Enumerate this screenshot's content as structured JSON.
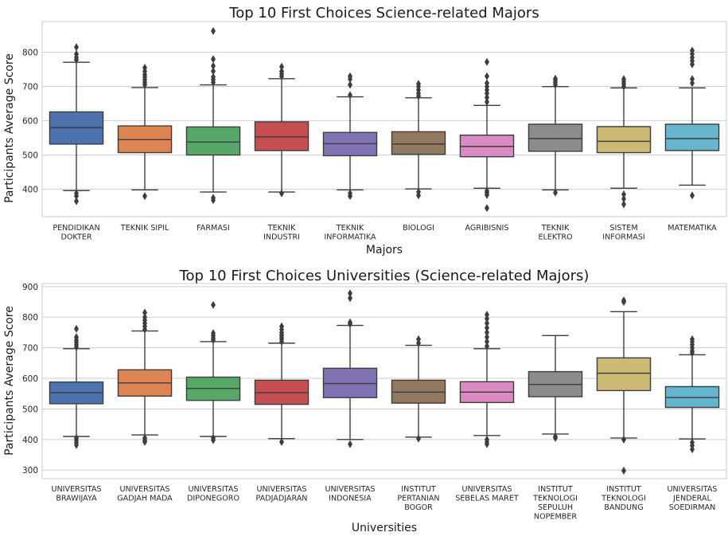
{
  "chart_data": [
    {
      "type": "box",
      "title": "Top 10 First Choices Science-related Majors",
      "xlabel": "Majors",
      "ylabel": "Participants Average Score",
      "ylim": [
        320,
        890
      ],
      "yticks": [
        400,
        500,
        600,
        700,
        800
      ],
      "grid": "horizontal",
      "categories": [
        "PENDIDIKAN\nDOKTER",
        "TEKNIK SIPIL",
        "FARMASI",
        "TEKNIK\nINDUSTRI",
        "TEKNIK\nINFORMATIKA",
        "BIOLOGI",
        "AGRIBISNIS",
        "TEKNIK\nELEKTRO",
        "SISTEM\nINFORMASI",
        "MATEMATIKA"
      ],
      "colors": [
        "#4c72b0",
        "#dd8452",
        "#55a868",
        "#c44e52",
        "#8172b3",
        "#937860",
        "#da8bc3",
        "#8c8c8c",
        "#ccb974",
        "#64b5cd"
      ],
      "boxes": [
        {
          "whislo": 396,
          "q1": 532,
          "med": 580,
          "q3": 626,
          "whishi": 771,
          "fliers": [
            365,
            380,
            388,
            778,
            785,
            795,
            815
          ]
        },
        {
          "whislo": 398,
          "q1": 507,
          "med": 545,
          "q3": 585,
          "whishi": 697,
          "fliers": [
            380,
            705,
            712,
            720,
            728,
            735,
            745,
            755
          ]
        },
        {
          "whislo": 392,
          "q1": 500,
          "med": 538,
          "q3": 582,
          "whishi": 705,
          "fliers": [
            368,
            375,
            712,
            720,
            728,
            745,
            760,
            780,
            862
          ]
        },
        {
          "whislo": 392,
          "q1": 513,
          "med": 553,
          "q3": 597,
          "whishi": 723,
          "fliers": [
            388,
            730,
            737,
            745,
            758
          ]
        },
        {
          "whislo": 398,
          "q1": 498,
          "med": 533,
          "q3": 566,
          "whishi": 670,
          "fliers": [
            380,
            388,
            675,
            705,
            722,
            730
          ]
        },
        {
          "whislo": 401,
          "q1": 502,
          "med": 532,
          "q3": 568,
          "whishi": 667,
          "fliers": [
            382,
            392,
            672,
            680,
            690,
            700,
            708
          ]
        },
        {
          "whislo": 403,
          "q1": 495,
          "med": 525,
          "q3": 558,
          "whishi": 645,
          "fliers": [
            345,
            383,
            390,
            395,
            655,
            668,
            680,
            690,
            700,
            710,
            730,
            772
          ]
        },
        {
          "whislo": 398,
          "q1": 511,
          "med": 548,
          "q3": 590,
          "whishi": 700,
          "fliers": [
            390,
            705,
            712,
            718,
            723
          ]
        },
        {
          "whislo": 403,
          "q1": 507,
          "med": 540,
          "q3": 583,
          "whishi": 696,
          "fliers": [
            356,
            372,
            385,
            700,
            708,
            715,
            722
          ]
        },
        {
          "whislo": 412,
          "q1": 513,
          "med": 548,
          "q3": 590,
          "whishi": 696,
          "fliers": [
            382,
            710,
            722,
            765,
            775,
            785,
            795,
            805
          ]
        }
      ]
    },
    {
      "type": "box",
      "title": "Top 10 First Choices Universities (Science-related Majors)",
      "xlabel": "Universities",
      "ylabel": "Participants Average Score",
      "ylim": [
        272,
        910
      ],
      "yticks": [
        300,
        400,
        500,
        600,
        700,
        800,
        900
      ],
      "grid": "horizontal",
      "categories": [
        "UNIVERSITAS\nBRAWIJAYA",
        "UNIVERSITAS\nGADJAH MADA",
        "UNIVERSITAS\nDIPONEGORO",
        "UNIVERSITAS\nPADJADJARAN",
        "UNIVERSITAS\nINDONESIA",
        "INSTITUT\nPERTANIAN\nBOGOR",
        "UNIVERSITAS\nSEBELAS MARET",
        "INSTITUT\nTEKNOLOGI\nSEPULUH\nNOPEMBER",
        "INSTITUT\nTEKNOLOGI\nBANDUNG",
        "UNIVERSITAS\nJENDERAL\nSOEDIRMAN"
      ],
      "colors": [
        "#4c72b0",
        "#dd8452",
        "#55a868",
        "#c44e52",
        "#8172b3",
        "#937860",
        "#da8bc3",
        "#8c8c8c",
        "#ccb974",
        "#64b5cd"
      ],
      "boxes": [
        {
          "whislo": 410,
          "q1": 517,
          "med": 553,
          "q3": 588,
          "whishi": 697,
          "fliers": [
            382,
            390,
            398,
            405,
            702,
            710,
            718,
            725,
            735,
            762
          ]
        },
        {
          "whislo": 415,
          "q1": 542,
          "med": 585,
          "q3": 628,
          "whishi": 755,
          "fliers": [
            392,
            398,
            405,
            760,
            770,
            780,
            790,
            800,
            815
          ]
        },
        {
          "whislo": 410,
          "q1": 528,
          "med": 567,
          "q3": 604,
          "whishi": 720,
          "fliers": [
            398,
            405,
            725,
            732,
            740,
            748,
            840
          ]
        },
        {
          "whislo": 403,
          "q1": 515,
          "med": 553,
          "q3": 594,
          "whishi": 715,
          "fliers": [
            392,
            720,
            728,
            735,
            742,
            750,
            760,
            770
          ]
        },
        {
          "whislo": 400,
          "q1": 537,
          "med": 583,
          "q3": 633,
          "whishi": 773,
          "fliers": [
            385,
            778,
            783,
            862,
            878
          ]
        },
        {
          "whislo": 408,
          "q1": 519,
          "med": 555,
          "q3": 594,
          "whishi": 708,
          "fliers": [
            403,
            715,
            728
          ]
        },
        {
          "whislo": 413,
          "q1": 521,
          "med": 555,
          "q3": 589,
          "whishi": 697,
          "fliers": [
            385,
            392,
            400,
            705,
            720,
            735,
            750,
            765,
            780,
            795,
            808
          ]
        },
        {
          "whislo": 418,
          "q1": 540,
          "med": 580,
          "q3": 622,
          "whishi": 740,
          "fliers": [
            405,
            410
          ]
        },
        {
          "whislo": 405,
          "q1": 560,
          "med": 617,
          "q3": 667,
          "whishi": 818,
          "fliers": [
            298,
            400,
            850,
            855
          ]
        },
        {
          "whislo": 402,
          "q1": 505,
          "med": 537,
          "q3": 573,
          "whishi": 677,
          "fliers": [
            368,
            380,
            390,
            683,
            690,
            700,
            710,
            720,
            728
          ]
        }
      ]
    }
  ]
}
